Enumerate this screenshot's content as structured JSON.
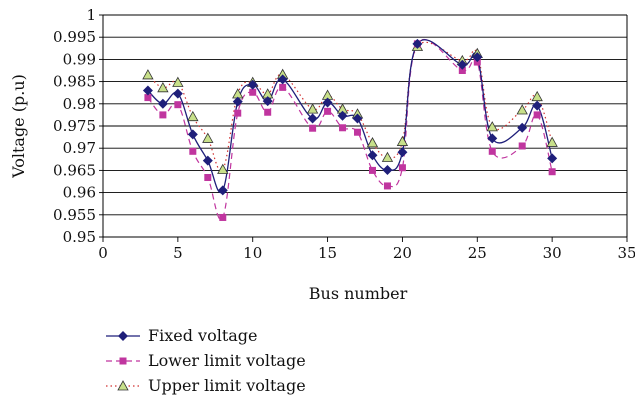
{
  "chart_data": {
    "type": "line",
    "title": "",
    "xlabel": "Bus number",
    "ylabel": "Voltage (p.u)",
    "xlim": [
      0,
      35
    ],
    "ylim": [
      0.95,
      1
    ],
    "xticks": [
      0,
      5,
      10,
      15,
      20,
      25,
      30,
      35
    ],
    "yticks": [
      0.95,
      0.955,
      0.96,
      0.965,
      0.97,
      0.975,
      0.98,
      0.985,
      0.99,
      0.995,
      1
    ],
    "xtick_labels": [
      "0",
      "5",
      "10",
      "15",
      "20",
      "25",
      "30",
      "35"
    ],
    "ytick_labels": [
      "0.95",
      "0.955",
      "0.96",
      "0.965",
      "0.97",
      "0.975",
      "0.98",
      "0.985",
      "0.99",
      "0.995",
      "1"
    ],
    "grid": "horizontal",
    "legend_position": "bottom-left",
    "series": [
      {
        "name": "Fixed voltage",
        "color": "#1f1f7a",
        "line_style": "solid",
        "marker": "diamond",
        "x": [
          3,
          4,
          5,
          6,
          7,
          8,
          9,
          10,
          11,
          12,
          14,
          15,
          16,
          17,
          18,
          19,
          20,
          21,
          24,
          25,
          26,
          28,
          29,
          30
        ],
        "y": [
          0.983,
          0.98,
          0.9823,
          0.9731,
          0.9672,
          0.9605,
          0.9805,
          0.9843,
          0.9806,
          0.9855,
          0.9767,
          0.9803,
          0.9773,
          0.9767,
          0.9684,
          0.9651,
          0.9691,
          0.9935,
          0.9888,
          0.9905,
          0.9722,
          0.9746,
          0.9796,
          0.9677
        ]
      },
      {
        "name": "Lower limit voltage",
        "color": "#c0359f",
        "line_style": "dashed",
        "marker": "square",
        "x": [
          3,
          4,
          5,
          6,
          7,
          8,
          9,
          10,
          11,
          12,
          14,
          15,
          16,
          17,
          18,
          19,
          20,
          21,
          24,
          25,
          26,
          28,
          29,
          30
        ],
        "y": [
          0.9814,
          0.9775,
          0.9798,
          0.9693,
          0.9634,
          0.9544,
          0.9779,
          0.9826,
          0.9781,
          0.9837,
          0.9745,
          0.9783,
          0.9746,
          0.9736,
          0.965,
          0.9615,
          0.9656,
          0.9935,
          0.9875,
          0.9894,
          0.9693,
          0.9705,
          0.9775,
          0.9647
        ]
      },
      {
        "name": "Upper limit voltage",
        "color": "#d13030",
        "line_style": "dotted",
        "marker": "triangle",
        "marker_fill": "#c8e08a",
        "x": [
          3,
          4,
          5,
          6,
          7,
          8,
          9,
          10,
          11,
          12,
          14,
          15,
          16,
          17,
          18,
          19,
          20,
          21,
          24,
          25,
          26,
          28,
          29,
          30
        ],
        "y": [
          0.9865,
          0.9836,
          0.9848,
          0.9771,
          0.9722,
          0.9652,
          0.9822,
          0.9848,
          0.9822,
          0.9866,
          0.9788,
          0.9819,
          0.9788,
          0.9777,
          0.9712,
          0.9679,
          0.9715,
          0.9929,
          0.9897,
          0.9913,
          0.9748,
          0.9786,
          0.9816,
          0.9713
        ]
      }
    ]
  }
}
